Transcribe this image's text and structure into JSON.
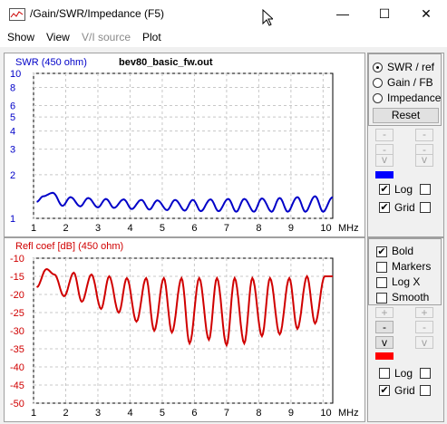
{
  "window": {
    "title": "/Gain/SWR/Impedance (F5)",
    "minimize_glyph": "—",
    "maximize_glyph": "☐",
    "close_glyph": "✕"
  },
  "menu": [
    "Show",
    "View",
    "V/I source",
    "Plot"
  ],
  "swr_chart": {
    "title": "bev80_basic_fw.out",
    "ylabel": "SWR (450 ohm)",
    "color": "#0000c8",
    "y_ticks": [
      "10",
      "8",
      "6",
      "5",
      "4",
      "3",
      "2",
      "1"
    ],
    "x_ticks": [
      "1",
      "2",
      "3",
      "4",
      "5",
      "6",
      "7",
      "8",
      "9",
      "10"
    ],
    "x_unit": "MHz"
  },
  "refl_chart": {
    "ylabel": "Refl coef [dB] (450 ohm)",
    "color": "#d00000",
    "y_ticks": [
      "-10",
      "-15",
      "-20",
      "-25",
      "-30",
      "-35",
      "-40",
      "-45",
      "-50"
    ],
    "x_ticks": [
      "1",
      "2",
      "3",
      "4",
      "5",
      "6",
      "7",
      "8",
      "9",
      "10"
    ],
    "x_unit": "MHz"
  },
  "chart_data": [
    {
      "type": "line",
      "title": "bev80_basic_fw.out",
      "ylabel": "SWR (450 ohm)",
      "xlabel": "MHz",
      "xlim": [
        1,
        10.3
      ],
      "ylim": [
        1,
        10
      ],
      "yscale": "log",
      "grid": true,
      "color": "#0000c8",
      "x": [
        1.1,
        1.3,
        1.6,
        1.9,
        2.15,
        2.45,
        2.7,
        3.0,
        3.25,
        3.5,
        3.8,
        4.05,
        4.35,
        4.6,
        4.85,
        5.15,
        5.4,
        5.7,
        5.95,
        6.2,
        6.5,
        6.75,
        7.05,
        7.3,
        7.55,
        7.85,
        8.1,
        8.4,
        8.65,
        8.9,
        9.2,
        9.45,
        9.75,
        10.0,
        10.3
      ],
      "y": [
        1.3,
        1.42,
        1.5,
        1.22,
        1.4,
        1.21,
        1.38,
        1.19,
        1.36,
        1.18,
        1.35,
        1.16,
        1.34,
        1.15,
        1.33,
        1.14,
        1.34,
        1.13,
        1.34,
        1.12,
        1.35,
        1.12,
        1.36,
        1.11,
        1.36,
        1.11,
        1.37,
        1.11,
        1.38,
        1.11,
        1.4,
        1.11,
        1.42,
        1.11,
        1.4
      ]
    },
    {
      "type": "line",
      "ylabel": "Refl coef [dB] (450 ohm)",
      "xlabel": "MHz",
      "xlim": [
        1,
        10.3
      ],
      "ylim": [
        -50,
        -10
      ],
      "grid": true,
      "color": "#d00000",
      "x": [
        1.1,
        1.4,
        1.65,
        1.95,
        2.25,
        2.5,
        2.8,
        3.1,
        3.35,
        3.65,
        3.9,
        4.2,
        4.5,
        4.75,
        5.05,
        5.3,
        5.6,
        5.85,
        6.15,
        6.45,
        6.7,
        7.0,
        7.25,
        7.55,
        7.8,
        8.1,
        8.35,
        8.65,
        8.95,
        9.2,
        9.5,
        9.75,
        10.05,
        10.3
      ],
      "y": [
        -18,
        -13,
        -14.5,
        -20.5,
        -14,
        -22,
        -14.5,
        -24,
        -15,
        -25,
        -15.5,
        -27.5,
        -15.5,
        -30,
        -15.5,
        -30.5,
        -15.5,
        -33.5,
        -15.5,
        -32.5,
        -15.5,
        -34,
        -15.5,
        -33.5,
        -15.5,
        -31.5,
        -15.5,
        -31,
        -15.5,
        -29.5,
        -15,
        -28,
        -15,
        -15
      ]
    }
  ],
  "panel_top": {
    "radios": [
      {
        "label": "SWR / ref",
        "checked": true
      },
      {
        "label": "Gain / FB",
        "checked": false
      },
      {
        "label": "Impedance",
        "checked": false
      }
    ],
    "reset_label": "Reset",
    "buttons": [
      "-",
      "-",
      "-",
      "-",
      "v",
      "v"
    ],
    "log_label": "Log",
    "grid_label": "Grid",
    "swatch_color": "#0000ff"
  },
  "panel_bottom": {
    "options": [
      {
        "label": "Bold",
        "checked": true
      },
      {
        "label": "Markers",
        "checked": false
      },
      {
        "label": "Log X",
        "checked": false
      },
      {
        "label": "Smooth",
        "checked": false
      }
    ],
    "buttons": [
      "+",
      "+",
      "-",
      "-",
      "v",
      "v"
    ],
    "log_label": "Log",
    "grid_label": "Grid",
    "swatch_color": "#ff0000",
    "check_glyph": "✔"
  }
}
